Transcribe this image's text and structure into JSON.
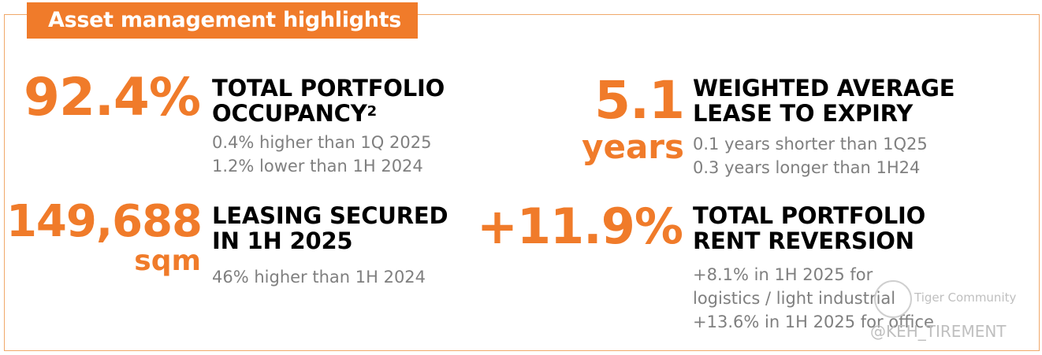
{
  "header": {
    "title": "Asset management highlights"
  },
  "occupancy": {
    "value": "92.4%",
    "heading_line1": "TOTAL PORTFOLIO",
    "heading_line2": "OCCUPANCY",
    "footnote": "2",
    "detail1": "0.4% higher than 1Q 2025",
    "detail2": "1.2% lower than 1H 2024"
  },
  "leasing": {
    "value": "149,688",
    "unit": "sqm",
    "heading_line1": "LEASING SECURED",
    "heading_line2": "IN 1H 2025",
    "detail1": "46% higher than 1H 2024"
  },
  "wale": {
    "value": "5.1",
    "unit": "years",
    "heading_line1": "WEIGHTED AVERAGE",
    "heading_line2": "LEASE TO EXPIRY",
    "detail1": "0.1 years shorter than 1Q25",
    "detail2": "0.3 years longer than 1H24"
  },
  "reversion": {
    "value": "+11.9%",
    "heading_line1": "TOTAL PORTFOLIO",
    "heading_line2": "RENT REVERSION",
    "detail1": "+8.1% in 1H 2025 for",
    "detail2": "logistics / light industrial",
    "detail3": "+13.6% in 1H 2025 for office"
  },
  "watermark": {
    "brand": "Tiger Community",
    "handle": "@KEH_TIREMENT"
  },
  "colors": {
    "accent": "#f07b2a",
    "heading": "#000000",
    "detail": "#7f7f7f"
  }
}
